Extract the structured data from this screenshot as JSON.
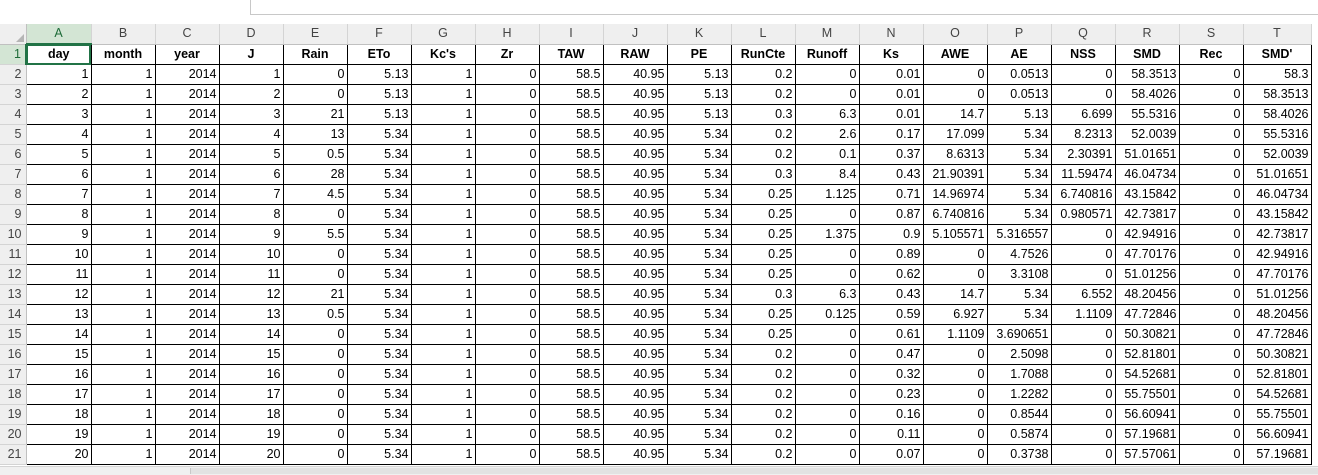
{
  "columns": [
    "A",
    "B",
    "C",
    "D",
    "E",
    "F",
    "G",
    "H",
    "I",
    "J",
    "K",
    "L",
    "M",
    "N",
    "O",
    "P",
    "Q",
    "R",
    "S",
    "T"
  ],
  "active_column": "A",
  "active_row": "1",
  "header_row_number": "1",
  "headers": [
    "day",
    "month",
    "year",
    "J",
    "Rain",
    "ETo",
    "Kc's",
    "Zr",
    "TAW",
    "RAW",
    "PE",
    "RunCte",
    "Runoff",
    "Ks",
    "AWE",
    "AE",
    "NSS",
    "SMD",
    "Rec",
    "SMD'"
  ],
  "rows": [
    {
      "n": "2",
      "cells": [
        "1",
        "1",
        "2014",
        "1",
        "0",
        "5.13",
        "1",
        "0",
        "58.5",
        "40.95",
        "5.13",
        "0.2",
        "0",
        "0.01",
        "0",
        "0.0513",
        "0",
        "58.3513",
        "0",
        "58.3"
      ]
    },
    {
      "n": "3",
      "cells": [
        "2",
        "1",
        "2014",
        "2",
        "0",
        "5.13",
        "1",
        "0",
        "58.5",
        "40.95",
        "5.13",
        "0.2",
        "0",
        "0.01",
        "0",
        "0.0513",
        "0",
        "58.4026",
        "0",
        "58.3513"
      ]
    },
    {
      "n": "4",
      "cells": [
        "3",
        "1",
        "2014",
        "3",
        "21",
        "5.13",
        "1",
        "0",
        "58.5",
        "40.95",
        "5.13",
        "0.3",
        "6.3",
        "0.01",
        "14.7",
        "5.13",
        "6.699",
        "55.5316",
        "0",
        "58.4026"
      ]
    },
    {
      "n": "5",
      "cells": [
        "4",
        "1",
        "2014",
        "4",
        "13",
        "5.34",
        "1",
        "0",
        "58.5",
        "40.95",
        "5.34",
        "0.2",
        "2.6",
        "0.17",
        "17.099",
        "5.34",
        "8.2313",
        "52.0039",
        "0",
        "55.5316"
      ]
    },
    {
      "n": "6",
      "cells": [
        "5",
        "1",
        "2014",
        "5",
        "0.5",
        "5.34",
        "1",
        "0",
        "58.5",
        "40.95",
        "5.34",
        "0.2",
        "0.1",
        "0.37",
        "8.6313",
        "5.34",
        "2.30391",
        "51.01651",
        "0",
        "52.0039"
      ]
    },
    {
      "n": "7",
      "cells": [
        "6",
        "1",
        "2014",
        "6",
        "28",
        "5.34",
        "1",
        "0",
        "58.5",
        "40.95",
        "5.34",
        "0.3",
        "8.4",
        "0.43",
        "21.90391",
        "5.34",
        "11.59474",
        "46.04734",
        "0",
        "51.01651"
      ]
    },
    {
      "n": "8",
      "cells": [
        "7",
        "1",
        "2014",
        "7",
        "4.5",
        "5.34",
        "1",
        "0",
        "58.5",
        "40.95",
        "5.34",
        "0.25",
        "1.125",
        "0.71",
        "14.96974",
        "5.34",
        "6.740816",
        "43.15842",
        "0",
        "46.04734"
      ]
    },
    {
      "n": "9",
      "cells": [
        "8",
        "1",
        "2014",
        "8",
        "0",
        "5.34",
        "1",
        "0",
        "58.5",
        "40.95",
        "5.34",
        "0.25",
        "0",
        "0.87",
        "6.740816",
        "5.34",
        "0.980571",
        "42.73817",
        "0",
        "43.15842"
      ]
    },
    {
      "n": "10",
      "cells": [
        "9",
        "1",
        "2014",
        "9",
        "5.5",
        "5.34",
        "1",
        "0",
        "58.5",
        "40.95",
        "5.34",
        "0.25",
        "1.375",
        "0.9",
        "5.105571",
        "5.316557",
        "0",
        "42.94916",
        "0",
        "42.73817"
      ]
    },
    {
      "n": "11",
      "cells": [
        "10",
        "1",
        "2014",
        "10",
        "0",
        "5.34",
        "1",
        "0",
        "58.5",
        "40.95",
        "5.34",
        "0.25",
        "0",
        "0.89",
        "0",
        "4.7526",
        "0",
        "47.70176",
        "0",
        "42.94916"
      ]
    },
    {
      "n": "12",
      "cells": [
        "11",
        "1",
        "2014",
        "11",
        "0",
        "5.34",
        "1",
        "0",
        "58.5",
        "40.95",
        "5.34",
        "0.25",
        "0",
        "0.62",
        "0",
        "3.3108",
        "0",
        "51.01256",
        "0",
        "47.70176"
      ]
    },
    {
      "n": "13",
      "cells": [
        "12",
        "1",
        "2014",
        "12",
        "21",
        "5.34",
        "1",
        "0",
        "58.5",
        "40.95",
        "5.34",
        "0.3",
        "6.3",
        "0.43",
        "14.7",
        "5.34",
        "6.552",
        "48.20456",
        "0",
        "51.01256"
      ]
    },
    {
      "n": "14",
      "cells": [
        "13",
        "1",
        "2014",
        "13",
        "0.5",
        "5.34",
        "1",
        "0",
        "58.5",
        "40.95",
        "5.34",
        "0.25",
        "0.125",
        "0.59",
        "6.927",
        "5.34",
        "1.1109",
        "47.72846",
        "0",
        "48.20456"
      ]
    },
    {
      "n": "15",
      "cells": [
        "14",
        "1",
        "2014",
        "14",
        "0",
        "5.34",
        "1",
        "0",
        "58.5",
        "40.95",
        "5.34",
        "0.25",
        "0",
        "0.61",
        "1.1109",
        "3.690651",
        "0",
        "50.30821",
        "0",
        "47.72846"
      ]
    },
    {
      "n": "16",
      "cells": [
        "15",
        "1",
        "2014",
        "15",
        "0",
        "5.34",
        "1",
        "0",
        "58.5",
        "40.95",
        "5.34",
        "0.2",
        "0",
        "0.47",
        "0",
        "2.5098",
        "0",
        "52.81801",
        "0",
        "50.30821"
      ]
    },
    {
      "n": "17",
      "cells": [
        "16",
        "1",
        "2014",
        "16",
        "0",
        "5.34",
        "1",
        "0",
        "58.5",
        "40.95",
        "5.34",
        "0.2",
        "0",
        "0.32",
        "0",
        "1.7088",
        "0",
        "54.52681",
        "0",
        "52.81801"
      ]
    },
    {
      "n": "18",
      "cells": [
        "17",
        "1",
        "2014",
        "17",
        "0",
        "5.34",
        "1",
        "0",
        "58.5",
        "40.95",
        "5.34",
        "0.2",
        "0",
        "0.23",
        "0",
        "1.2282",
        "0",
        "55.75501",
        "0",
        "54.52681"
      ]
    },
    {
      "n": "19",
      "cells": [
        "18",
        "1",
        "2014",
        "18",
        "0",
        "5.34",
        "1",
        "0",
        "58.5",
        "40.95",
        "5.34",
        "0.2",
        "0",
        "0.16",
        "0",
        "0.8544",
        "0",
        "56.60941",
        "0",
        "55.75501"
      ]
    },
    {
      "n": "20",
      "cells": [
        "19",
        "1",
        "2014",
        "19",
        "0",
        "5.34",
        "1",
        "0",
        "58.5",
        "40.95",
        "5.34",
        "0.2",
        "0",
        "0.11",
        "0",
        "0.5874",
        "0",
        "57.19681",
        "0",
        "56.60941"
      ]
    },
    {
      "n": "21",
      "cells": [
        "20",
        "1",
        "2014",
        "20",
        "0",
        "5.34",
        "1",
        "0",
        "58.5",
        "40.95",
        "5.34",
        "0.2",
        "0",
        "0.07",
        "0",
        "0.3738",
        "0",
        "57.57061",
        "0",
        "57.19681"
      ]
    }
  ]
}
